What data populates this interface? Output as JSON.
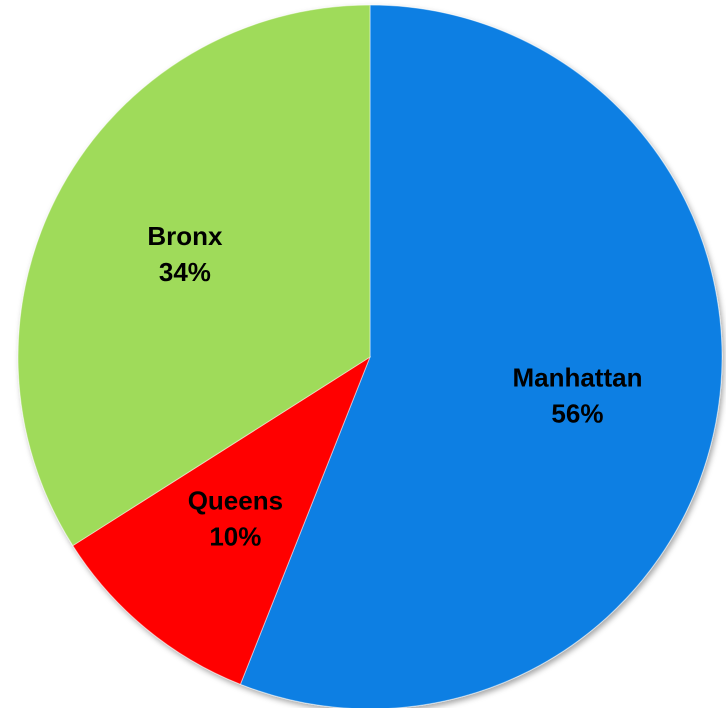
{
  "chart_data": {
    "type": "pie",
    "categories": [
      "Manhattan",
      "Queens",
      "Bronx"
    ],
    "values": [
      56,
      10,
      34
    ],
    "value_labels": [
      "56%",
      "10%",
      "34%"
    ],
    "colors": [
      "#0a7fe3",
      "#ff0000",
      "#9fdb5a"
    ],
    "start_angle": 0,
    "direction": "clockwise"
  }
}
